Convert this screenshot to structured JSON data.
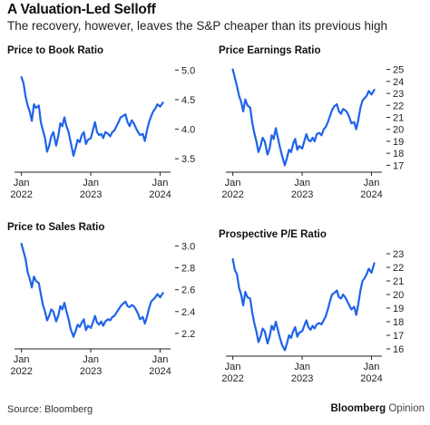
{
  "header": {
    "title": "A Valuation-Led Selloff",
    "subtitle": "The recovery, however, leaves the S&P cheaper than its previous high"
  },
  "footer": {
    "source": "Source: Bloomberg",
    "brand_main": "Bloomberg",
    "brand_sub": "Opinion"
  },
  "colors": {
    "line": "#1f63e8",
    "axis": "#222222",
    "text": "#222222"
  },
  "chart_data": [
    {
      "id": "pb",
      "type": "line",
      "title": "Price to Book Ratio",
      "x_ticks": [
        {
          "value": 2022.0,
          "line1": "Jan",
          "line2": "2022"
        },
        {
          "value": 2023.0,
          "line1": "Jan",
          "line2": "2023"
        },
        {
          "value": 2024.0,
          "line1": "Jan",
          "line2": "2024"
        }
      ],
      "xlim": [
        2021.9,
        2024.15
      ],
      "ylim": [
        3.35,
        5.05
      ],
      "y_ticks": [
        {
          "value": 3.5,
          "label": "3.5"
        },
        {
          "value": 4.0,
          "label": "4.0"
        },
        {
          "value": 4.5,
          "label": "4.5"
        },
        {
          "value": 5.0,
          "label": "5.0"
        }
      ],
      "series": [
        {
          "x": [
            2022.0,
            2022.03,
            2022.06,
            2022.09,
            2022.12,
            2022.15,
            2022.18,
            2022.21,
            2022.25,
            2022.28,
            2022.31,
            2022.34,
            2022.37,
            2022.4,
            2022.43,
            2022.46,
            2022.5,
            2022.53,
            2022.56,
            2022.59,
            2022.62,
            2022.65,
            2022.68,
            2022.71,
            2022.75,
            2022.78,
            2022.81,
            2022.84,
            2022.87,
            2022.9,
            2022.93,
            2022.96,
            2023.0,
            2023.03,
            2023.06,
            2023.09,
            2023.12,
            2023.15,
            2023.18,
            2023.21,
            2023.25,
            2023.28,
            2023.31,
            2023.34,
            2023.37,
            2023.4,
            2023.43,
            2023.46,
            2023.5,
            2023.53,
            2023.56,
            2023.59,
            2023.62,
            2023.65,
            2023.68,
            2023.71,
            2023.75,
            2023.78,
            2023.81,
            2023.84,
            2023.87,
            2023.9,
            2023.93,
            2023.96,
            2024.0,
            2024.04
          ],
          "y": [
            4.88,
            4.78,
            4.55,
            4.4,
            4.3,
            4.14,
            4.42,
            4.36,
            4.4,
            4.12,
            3.98,
            3.85,
            3.62,
            3.72,
            3.88,
            3.95,
            3.72,
            3.88,
            4.1,
            4.05,
            4.2,
            4.05,
            3.95,
            3.78,
            3.55,
            3.68,
            3.82,
            3.78,
            3.9,
            3.95,
            3.75,
            3.82,
            3.85,
            3.98,
            4.12,
            3.95,
            3.9,
            3.92,
            3.85,
            3.95,
            3.92,
            3.88,
            3.95,
            3.98,
            4.05,
            4.12,
            4.2,
            4.22,
            4.25,
            4.12,
            4.05,
            4.15,
            4.1,
            4.02,
            3.95,
            3.9,
            3.92,
            3.8,
            3.98,
            4.12,
            4.22,
            4.3,
            4.35,
            4.42,
            4.38,
            4.45
          ]
        }
      ]
    },
    {
      "id": "pe",
      "type": "line",
      "title": "Price Earnings Ratio",
      "x_ticks": [
        {
          "value": 2022.0,
          "line1": "Jan",
          "line2": "2022"
        },
        {
          "value": 2023.0,
          "line1": "Jan",
          "line2": "2023"
        },
        {
          "value": 2024.0,
          "line1": "Jan",
          "line2": "2024"
        }
      ],
      "xlim": [
        2021.9,
        2024.15
      ],
      "ylim": [
        16.8,
        25.2
      ],
      "y_ticks": [
        {
          "value": 17,
          "label": "17"
        },
        {
          "value": 18,
          "label": "18"
        },
        {
          "value": 19,
          "label": "19"
        },
        {
          "value": 20,
          "label": "20"
        },
        {
          "value": 21,
          "label": "21"
        },
        {
          "value": 22,
          "label": "22"
        },
        {
          "value": 23,
          "label": "23"
        },
        {
          "value": 24,
          "label": "24"
        },
        {
          "value": 25,
          "label": "25"
        }
      ],
      "series": [
        {
          "x": [
            2022.0,
            2022.03,
            2022.06,
            2022.09,
            2022.12,
            2022.15,
            2022.18,
            2022.21,
            2022.25,
            2022.28,
            2022.31,
            2022.34,
            2022.37,
            2022.4,
            2022.43,
            2022.46,
            2022.5,
            2022.53,
            2022.56,
            2022.59,
            2022.62,
            2022.65,
            2022.68,
            2022.71,
            2022.75,
            2022.78,
            2022.81,
            2022.84,
            2022.87,
            2022.9,
            2022.93,
            2022.96,
            2023.0,
            2023.03,
            2023.06,
            2023.09,
            2023.12,
            2023.15,
            2023.18,
            2023.21,
            2023.25,
            2023.28,
            2023.31,
            2023.34,
            2023.37,
            2023.4,
            2023.43,
            2023.46,
            2023.5,
            2023.53,
            2023.56,
            2023.59,
            2023.62,
            2023.65,
            2023.68,
            2023.71,
            2023.75,
            2023.78,
            2023.81,
            2023.84,
            2023.87,
            2023.9,
            2023.93,
            2023.96,
            2024.0,
            2024.04
          ],
          "y": [
            25.0,
            24.3,
            23.6,
            22.8,
            22.3,
            21.5,
            22.5,
            22.0,
            21.8,
            20.6,
            19.7,
            19.0,
            18.1,
            18.6,
            19.3,
            19.0,
            17.9,
            18.4,
            19.5,
            19.2,
            20.1,
            19.3,
            18.5,
            17.8,
            17.0,
            17.6,
            18.3,
            18.1,
            18.8,
            19.2,
            18.3,
            18.6,
            18.4,
            19.0,
            19.6,
            19.1,
            19.0,
            19.3,
            19.0,
            19.6,
            19.7,
            19.5,
            20.0,
            20.2,
            20.6,
            21.1,
            21.6,
            21.9,
            22.1,
            21.5,
            21.3,
            21.7,
            21.6,
            21.4,
            21.0,
            20.5,
            20.6,
            20.0,
            20.8,
            21.8,
            22.4,
            22.6,
            22.8,
            23.2,
            22.9,
            23.3
          ]
        }
      ]
    },
    {
      "id": "ps",
      "type": "line",
      "title": "Price to Sales Ratio",
      "x_ticks": [
        {
          "value": 2022.0,
          "line1": "Jan",
          "line2": "2022"
        },
        {
          "value": 2023.0,
          "line1": "Jan",
          "line2": "2023"
        },
        {
          "value": 2024.0,
          "line1": "Jan",
          "line2": "2024"
        }
      ],
      "xlim": [
        2021.9,
        2024.15
      ],
      "ylim": [
        2.1,
        3.02
      ],
      "y_ticks": [
        {
          "value": 2.2,
          "label": "2.2"
        },
        {
          "value": 2.4,
          "label": "2.4"
        },
        {
          "value": 2.6,
          "label": "2.6"
        },
        {
          "value": 2.8,
          "label": "2.8"
        },
        {
          "value": 3.0,
          "label": "3.0"
        }
      ],
      "series": [
        {
          "x": [
            2022.0,
            2022.03,
            2022.06,
            2022.09,
            2022.12,
            2022.15,
            2022.18,
            2022.21,
            2022.25,
            2022.28,
            2022.31,
            2022.34,
            2022.37,
            2022.4,
            2022.43,
            2022.46,
            2022.5,
            2022.53,
            2022.56,
            2022.59,
            2022.62,
            2022.65,
            2022.68,
            2022.71,
            2022.75,
            2022.78,
            2022.81,
            2022.84,
            2022.87,
            2022.9,
            2022.93,
            2022.96,
            2023.0,
            2023.03,
            2023.06,
            2023.09,
            2023.12,
            2023.15,
            2023.18,
            2023.21,
            2023.25,
            2023.28,
            2023.31,
            2023.34,
            2023.37,
            2023.4,
            2023.43,
            2023.46,
            2023.5,
            2023.53,
            2023.56,
            2023.59,
            2023.62,
            2023.65,
            2023.68,
            2023.71,
            2023.75,
            2023.78,
            2023.81,
            2023.84,
            2023.87,
            2023.9,
            2023.93,
            2023.96,
            2024.0,
            2024.04
          ],
          "y": [
            3.02,
            2.95,
            2.88,
            2.76,
            2.7,
            2.62,
            2.72,
            2.68,
            2.66,
            2.56,
            2.46,
            2.4,
            2.32,
            2.36,
            2.42,
            2.4,
            2.31,
            2.36,
            2.45,
            2.42,
            2.48,
            2.4,
            2.33,
            2.24,
            2.17,
            2.22,
            2.28,
            2.26,
            2.3,
            2.33,
            2.23,
            2.27,
            2.25,
            2.3,
            2.36,
            2.3,
            2.28,
            2.31,
            2.27,
            2.31,
            2.33,
            2.32,
            2.35,
            2.36,
            2.39,
            2.42,
            2.45,
            2.47,
            2.49,
            2.45,
            2.44,
            2.46,
            2.45,
            2.42,
            2.38,
            2.33,
            2.35,
            2.29,
            2.35,
            2.43,
            2.49,
            2.51,
            2.53,
            2.56,
            2.53,
            2.57
          ]
        }
      ]
    },
    {
      "id": "fpe",
      "type": "line",
      "title": "Prospective P/E Ratio",
      "x_ticks": [
        {
          "value": 2022.0,
          "line1": "Jan",
          "line2": "2022"
        },
        {
          "value": 2023.0,
          "line1": "Jan",
          "line2": "2023"
        },
        {
          "value": 2024.0,
          "line1": "Jan",
          "line2": "2024"
        }
      ],
      "xlim": [
        2021.9,
        2024.15
      ],
      "ylim": [
        15.8,
        23.2
      ],
      "y_ticks": [
        {
          "value": 16,
          "label": "16"
        },
        {
          "value": 17,
          "label": "17"
        },
        {
          "value": 18,
          "label": "18"
        },
        {
          "value": 19,
          "label": "19"
        },
        {
          "value": 20,
          "label": "20"
        },
        {
          "value": 21,
          "label": "21"
        },
        {
          "value": 22,
          "label": "22"
        },
        {
          "value": 23,
          "label": "23"
        }
      ],
      "series": [
        {
          "x": [
            2022.0,
            2022.03,
            2022.06,
            2022.09,
            2022.12,
            2022.15,
            2022.18,
            2022.21,
            2022.25,
            2022.28,
            2022.31,
            2022.34,
            2022.37,
            2022.4,
            2022.43,
            2022.46,
            2022.5,
            2022.53,
            2022.56,
            2022.59,
            2022.62,
            2022.65,
            2022.68,
            2022.71,
            2022.75,
            2022.78,
            2022.81,
            2022.84,
            2022.87,
            2022.9,
            2022.93,
            2022.96,
            2023.0,
            2023.03,
            2023.06,
            2023.09,
            2023.12,
            2023.15,
            2023.18,
            2023.21,
            2023.25,
            2023.28,
            2023.31,
            2023.34,
            2023.37,
            2023.4,
            2023.43,
            2023.46,
            2023.5,
            2023.53,
            2023.56,
            2023.59,
            2023.62,
            2023.65,
            2023.68,
            2023.71,
            2023.75,
            2023.78,
            2023.81,
            2023.84,
            2023.87,
            2023.9,
            2023.93,
            2023.96,
            2024.0,
            2024.04
          ],
          "y": [
            22.6,
            21.8,
            21.5,
            20.5,
            20.0,
            19.2,
            20.2,
            19.8,
            19.7,
            18.7,
            17.9,
            17.3,
            16.5,
            16.9,
            17.5,
            17.3,
            16.4,
            16.9,
            17.7,
            17.4,
            18.0,
            17.4,
            16.8,
            16.3,
            15.9,
            16.4,
            17.0,
            16.8,
            17.3,
            17.6,
            16.9,
            17.2,
            17.3,
            17.7,
            18.1,
            17.6,
            17.4,
            17.7,
            17.5,
            17.8,
            17.9,
            17.8,
            18.1,
            18.4,
            18.9,
            19.5,
            20.0,
            20.1,
            20.3,
            19.8,
            19.7,
            20.0,
            19.8,
            19.5,
            19.2,
            18.9,
            19.1,
            18.5,
            19.3,
            20.3,
            21.0,
            21.2,
            21.5,
            21.9,
            21.6,
            22.3
          ]
        }
      ]
    }
  ]
}
